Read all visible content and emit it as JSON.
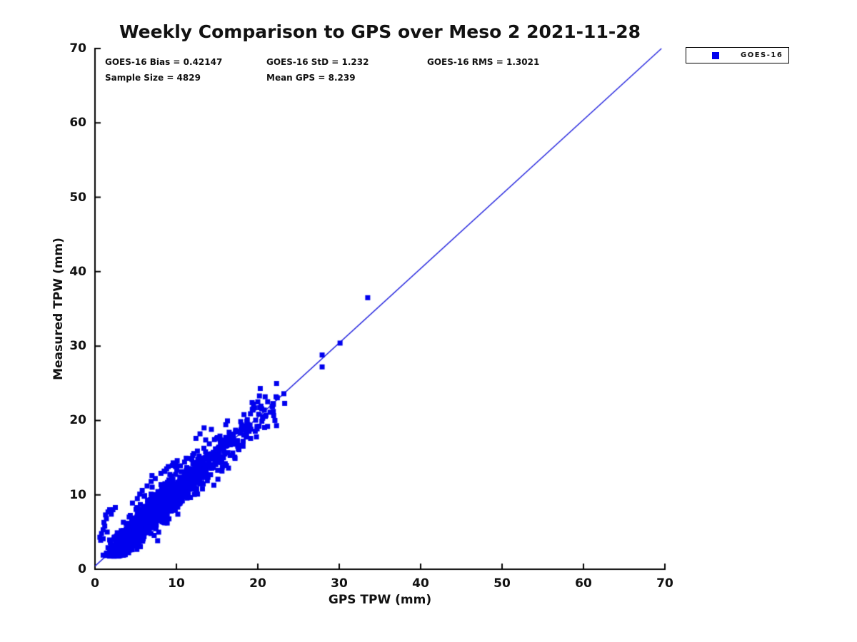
{
  "header": {
    "title": "Weekly Comparison to GPS over Meso 2 2021-11-28"
  },
  "stats": {
    "bias_label": "GOES-16 Bias = 0.42147",
    "std_label": "GOES-16 StD = 1.232",
    "rms_label": "GOES-16 RMS = 1.3021",
    "sample_size_label": "Sample Size = 4829",
    "mean_gps_label": "Mean GPS = 8.239"
  },
  "legend": {
    "label": "GOES-16",
    "marker_color": "#0000ee",
    "marker": "square"
  },
  "axes": {
    "xlabel": "GPS TPW (mm)",
    "ylabel": "Measured TPW (mm)"
  },
  "chart_data": {
    "type": "scatter",
    "title": "Weekly Comparison to GPS over Meso 2 2021-11-28",
    "xlabel": "GPS TPW (mm)",
    "ylabel": "Measured TPW (mm)",
    "xlim": [
      0,
      70
    ],
    "ylim": [
      0,
      70
    ],
    "xticks": [
      0,
      10,
      20,
      30,
      40,
      50,
      60,
      70
    ],
    "yticks": [
      0,
      10,
      20,
      30,
      40,
      50,
      60,
      70
    ],
    "grid": false,
    "spines": [
      "left",
      "bottom"
    ],
    "tick_direction": "in",
    "axis_color": "#000000",
    "legend_position": "outside-top-right",
    "stats": {
      "bias": 0.42147,
      "std": 1.232,
      "rms": 1.3021,
      "sample_size": 4829,
      "mean_gps": 8.239
    },
    "fit_line": {
      "from": [
        0,
        0.42
      ],
      "to": [
        69.58,
        70
      ],
      "color": "#2020dd",
      "width": 1.4
    },
    "series": [
      {
        "name": "GOES-16",
        "marker": "square",
        "marker_size": 7,
        "color": "#0000ee",
        "cluster_model": {
          "comment": "approximation of 4829 overlapping points: y = x + bias + noise, x gamma-distributed",
          "count": 1500,
          "seed": 20211128,
          "x_offset": 1.1,
          "gamma_shape": 3,
          "gamma_scale": 2.38,
          "bias": 0.42,
          "noise_std": 1.25,
          "x_clip": [
            0.5,
            22.5
          ],
          "y_min": 1.7
        },
        "feature_points": [
          [
            0.6,
            4.3
          ],
          [
            0.8,
            4.8
          ],
          [
            1.0,
            5.3
          ],
          [
            1.0,
            4.1
          ],
          [
            1.2,
            5.8
          ],
          [
            1.1,
            6.3
          ],
          [
            1.4,
            6.8
          ],
          [
            1.3,
            7.3
          ],
          [
            1.6,
            7.7
          ],
          [
            1.8,
            8.0
          ],
          [
            0.7,
            3.9
          ],
          [
            1.5,
            5.0
          ],
          [
            2.0,
            7.4
          ],
          [
            2.2,
            8.0
          ],
          [
            2.5,
            8.3
          ],
          [
            1.0,
            1.9
          ],
          [
            1.4,
            2.1
          ],
          [
            1.8,
            2.4
          ],
          [
            2.2,
            2.0
          ],
          [
            2.6,
            2.7
          ],
          [
            3.0,
            2.3
          ],
          [
            3.4,
            2.9
          ],
          [
            2.0,
            3.1
          ],
          [
            1.6,
            2.9
          ],
          [
            4.6,
            8.9
          ],
          [
            5.2,
            9.5
          ],
          [
            5.8,
            10.6
          ],
          [
            6.4,
            11.2
          ],
          [
            6.9,
            11.8
          ],
          [
            7.4,
            12.2
          ],
          [
            6.1,
            9.9
          ],
          [
            8.1,
            12.9
          ],
          [
            8.5,
            13.2
          ],
          [
            9.0,
            13.8
          ],
          [
            9.6,
            14.3
          ],
          [
            10.1,
            14.6
          ],
          [
            10.5,
            13.9
          ],
          [
            11.0,
            14.4
          ],
          [
            11.6,
            14.9
          ],
          [
            12.0,
            15.3
          ],
          [
            8.8,
            13.5
          ],
          [
            7.0,
            12.6
          ],
          [
            5.5,
            10.1
          ],
          [
            12.9,
            18.2
          ],
          [
            13.4,
            19.0
          ],
          [
            14.3,
            18.8
          ],
          [
            12.4,
            17.6
          ],
          [
            15.4,
            16.9
          ],
          [
            16.2,
            17.4
          ],
          [
            17.0,
            17.9
          ],
          [
            17.6,
            16.2
          ],
          [
            18.2,
            17.2
          ],
          [
            18.0,
            19.4
          ],
          [
            18.6,
            18.9
          ],
          [
            16.6,
            15.3
          ],
          [
            17.2,
            14.9
          ],
          [
            19.1,
            20.9
          ],
          [
            19.6,
            21.7
          ],
          [
            20.0,
            22.5
          ],
          [
            20.3,
            24.3
          ],
          [
            19.3,
            22.4
          ],
          [
            20.8,
            21.4
          ],
          [
            21.2,
            19.2
          ],
          [
            20.5,
            19.9
          ],
          [
            21.0,
            20.7
          ],
          [
            20.2,
            23.3
          ],
          [
            21.5,
            21.1
          ],
          [
            19.9,
            19.2
          ],
          [
            20.6,
            20.3
          ],
          [
            21.8,
            21.9
          ],
          [
            22.1,
            20.0
          ],
          [
            14.6,
            11.3
          ],
          [
            15.1,
            12.1
          ],
          [
            15.6,
            13.2
          ],
          [
            16.0,
            14.2
          ],
          [
            14.2,
            12.7
          ],
          [
            13.8,
            11.9
          ],
          [
            16.4,
            13.6
          ],
          [
            22.3,
            19.3
          ],
          [
            12.6,
            10.1
          ],
          [
            13.2,
            10.8
          ],
          [
            23.2,
            23.6
          ],
          [
            23.3,
            22.3
          ],
          [
            27.9,
            28.8
          ],
          [
            27.9,
            27.2
          ],
          [
            30.1,
            30.4
          ],
          [
            33.5,
            36.5
          ]
        ]
      }
    ]
  }
}
